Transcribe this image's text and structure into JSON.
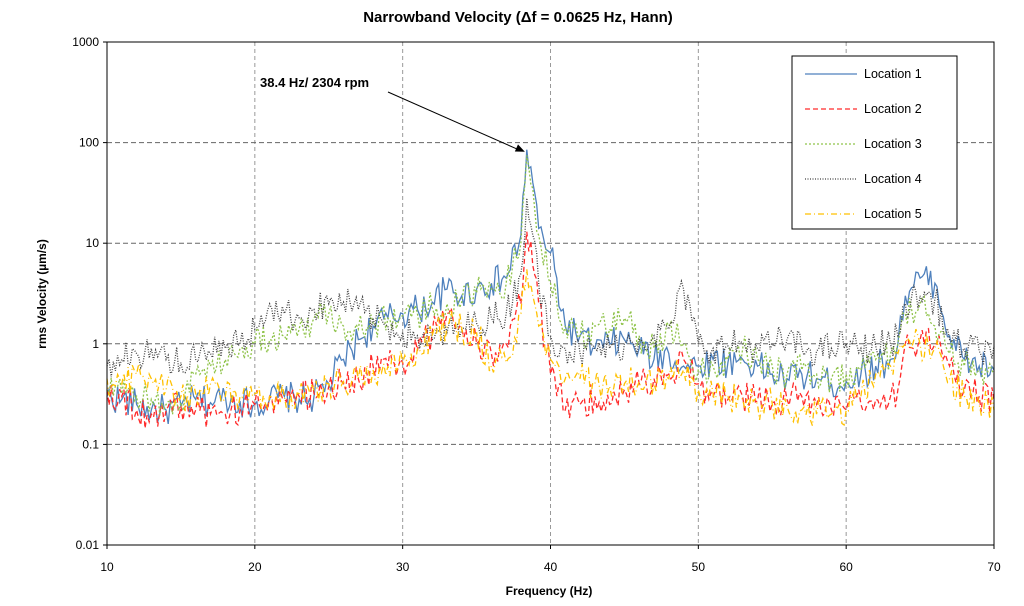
{
  "chart_data": {
    "type": "line",
    "title": "Narrowband Velocity (Δf  = 0.0625 Hz, Hann)",
    "xlabel": "Frequency (Hz)",
    "ylabel": "rms Velocity (µm/s)",
    "xlim": [
      10,
      70
    ],
    "ylim": [
      0.01,
      1000
    ],
    "yscale": "log",
    "x_ticks": [
      "10",
      "20",
      "30",
      "40",
      "50",
      "60",
      "70"
    ],
    "y_ticks": [
      "0.01",
      "0.1",
      "1",
      "10",
      "100",
      "1000"
    ],
    "grid": "dashed",
    "legend_position": "top-right",
    "annotation": {
      "text": "38.4 Hz/ 2304 rpm",
      "x": 38.4,
      "y": 85
    },
    "series": [
      {
        "name": "Location 1",
        "color": "#4f81bd",
        "dash": "solid",
        "x": [
          10,
          11,
          12,
          13,
          14,
          15,
          16,
          17,
          18,
          19,
          20,
          21,
          22,
          23,
          24,
          25,
          26,
          27,
          28,
          29,
          30,
          31,
          32,
          33,
          34,
          35,
          36,
          37,
          38,
          38.4,
          38.8,
          39.2,
          40,
          41,
          42,
          43,
          44,
          45,
          46,
          47,
          48,
          49,
          50,
          51,
          52,
          53,
          54,
          55,
          56,
          57,
          58,
          59,
          60,
          61,
          62,
          63,
          63.5,
          64,
          65,
          66,
          67,
          68,
          69,
          70
        ],
        "y": [
          0.3,
          0.28,
          0.25,
          0.22,
          0.22,
          0.24,
          0.28,
          0.26,
          0.3,
          0.27,
          0.25,
          0.28,
          0.3,
          0.28,
          0.3,
          0.4,
          0.7,
          1.1,
          1.5,
          1.8,
          2.0,
          2.2,
          2.6,
          3.5,
          3.0,
          3.5,
          4.0,
          4.5,
          12,
          85,
          40,
          14,
          8,
          1.5,
          1.2,
          0.9,
          1.0,
          1.1,
          0.9,
          0.7,
          0.8,
          0.6,
          0.6,
          0.7,
          0.65,
          0.7,
          0.6,
          0.5,
          0.45,
          0.5,
          0.45,
          0.4,
          0.42,
          0.5,
          0.6,
          0.7,
          1.0,
          3.0,
          4.5,
          4.0,
          1.2,
          0.7,
          0.6,
          0.55
        ]
      },
      {
        "name": "Location 2",
        "color": "#ff2a2a",
        "dash": "dashed",
        "x": [
          10,
          11,
          12,
          13,
          14,
          15,
          16,
          17,
          18,
          19,
          20,
          21,
          22,
          23,
          24,
          25,
          26,
          27,
          28,
          29,
          30,
          31,
          32,
          33,
          34,
          35,
          36,
          37,
          38,
          38.4,
          38.8,
          39.2,
          40,
          41,
          42,
          43,
          44,
          45,
          46,
          47,
          48,
          49,
          50,
          51,
          52,
          53,
          54,
          55,
          56,
          57,
          58,
          59,
          60,
          61,
          62,
          63,
          63.5,
          64,
          65,
          66,
          67,
          68,
          69,
          70
        ],
        "y": [
          0.35,
          0.3,
          0.22,
          0.2,
          0.22,
          0.24,
          0.22,
          0.2,
          0.2,
          0.22,
          0.25,
          0.3,
          0.28,
          0.3,
          0.32,
          0.38,
          0.4,
          0.45,
          0.6,
          0.6,
          0.65,
          0.85,
          1.3,
          2.0,
          1.4,
          1.0,
          0.8,
          1.0,
          2.5,
          13,
          6,
          2.5,
          0.5,
          0.22,
          0.25,
          0.3,
          0.25,
          0.35,
          0.4,
          0.45,
          0.5,
          0.7,
          0.4,
          0.3,
          0.28,
          0.3,
          0.27,
          0.26,
          0.28,
          0.3,
          0.25,
          0.22,
          0.22,
          0.25,
          0.28,
          0.3,
          0.35,
          1.0,
          1.1,
          1.0,
          0.6,
          0.35,
          0.3,
          0.28
        ]
      },
      {
        "name": "Location 3",
        "color": "#8fc34a",
        "dash": "dotted",
        "x": [
          10,
          11,
          12,
          13,
          14,
          15,
          16,
          17,
          18,
          19,
          20,
          21,
          22,
          23,
          24,
          25,
          26,
          27,
          28,
          29,
          30,
          31,
          32,
          33,
          34,
          35,
          36,
          37,
          38,
          38.4,
          38.8,
          39.2,
          40,
          41,
          42,
          43,
          44,
          45,
          46,
          47,
          48,
          49,
          50,
          51,
          52,
          53,
          54,
          55,
          56,
          57,
          58,
          59,
          60,
          61,
          62,
          63,
          63.5,
          64,
          65,
          66,
          67,
          68,
          69,
          70
        ],
        "y": [
          0.35,
          0.32,
          0.3,
          0.28,
          0.25,
          0.26,
          0.5,
          0.6,
          0.7,
          0.9,
          1.0,
          1.1,
          1.2,
          1.4,
          1.8,
          2.0,
          1.5,
          1.4,
          1.6,
          1.8,
          1.9,
          2.0,
          2.3,
          2.5,
          2.6,
          3.2,
          3.5,
          4.0,
          10,
          75,
          35,
          12,
          4.0,
          1.5,
          1.2,
          1.5,
          1.4,
          1.8,
          1.2,
          0.9,
          1.5,
          1.0,
          0.55,
          0.6,
          0.7,
          0.9,
          0.7,
          0.6,
          0.5,
          0.55,
          0.5,
          0.45,
          0.5,
          0.55,
          0.7,
          0.8,
          1.0,
          2.0,
          2.5,
          1.5,
          0.8,
          0.6,
          0.55,
          0.5
        ]
      },
      {
        "name": "Location 4",
        "color": "#404040",
        "dash": "densely-dotted",
        "x": [
          10,
          11,
          12,
          13,
          14,
          15,
          16,
          17,
          18,
          19,
          20,
          21,
          22,
          23,
          24,
          25,
          26,
          27,
          28,
          29,
          30,
          31,
          32,
          33,
          34,
          35,
          36,
          37,
          38,
          38.4,
          38.8,
          39.2,
          40,
          41,
          42,
          43,
          44,
          45,
          46,
          47,
          48,
          49,
          50,
          51,
          52,
          53,
          54,
          55,
          56,
          57,
          58,
          59,
          60,
          61,
          62,
          63,
          63.5,
          64,
          65,
          66,
          67,
          68,
          69,
          70
        ],
        "y": [
          0.6,
          0.7,
          0.8,
          0.9,
          0.7,
          0.65,
          0.7,
          0.8,
          0.9,
          1.0,
          1.4,
          2.5,
          2.0,
          1.8,
          2.2,
          2.5,
          2.6,
          2.2,
          1.8,
          1.5,
          1.3,
          1.2,
          1.1,
          1.3,
          1.4,
          1.6,
          1.8,
          2.0,
          5,
          28,
          12,
          4,
          1.2,
          0.9,
          0.8,
          0.9,
          0.9,
          1.0,
          1.1,
          1.2,
          1.4,
          3.5,
          1.0,
          0.9,
          0.95,
          1.0,
          0.9,
          1.0,
          1.1,
          0.9,
          0.85,
          0.9,
          1.0,
          0.9,
          0.95,
          1.0,
          1.2,
          2.5,
          3.0,
          2.8,
          1.1,
          0.9,
          0.85,
          0.95
        ]
      },
      {
        "name": "Location 5",
        "color": "#ffc000",
        "dash": "dash-dot",
        "x": [
          10,
          11,
          12,
          13,
          14,
          15,
          16,
          17,
          18,
          19,
          20,
          21,
          22,
          23,
          24,
          25,
          26,
          27,
          28,
          29,
          30,
          31,
          32,
          33,
          34,
          35,
          36,
          37,
          38,
          38.4,
          38.8,
          39.2,
          40,
          41,
          42,
          43,
          44,
          45,
          46,
          47,
          48,
          49,
          50,
          51,
          52,
          53,
          54,
          55,
          56,
          57,
          58,
          59,
          60,
          61,
          62,
          63,
          63.5,
          64,
          65,
          66,
          67,
          68,
          69,
          70
        ],
        "y": [
          0.45,
          0.4,
          0.5,
          0.45,
          0.35,
          0.3,
          0.32,
          0.4,
          0.3,
          0.3,
          0.32,
          0.3,
          0.3,
          0.32,
          0.35,
          0.4,
          0.42,
          0.45,
          0.55,
          0.6,
          0.65,
          0.9,
          1.2,
          1.5,
          1.4,
          1.3,
          0.6,
          0.65,
          2.0,
          5.5,
          3.0,
          1.5,
          0.7,
          0.45,
          0.45,
          0.4,
          0.38,
          0.4,
          0.42,
          0.4,
          0.45,
          0.55,
          0.35,
          0.32,
          0.3,
          0.28,
          0.25,
          0.25,
          0.24,
          0.22,
          0.2,
          0.2,
          0.22,
          0.3,
          0.5,
          0.6,
          0.8,
          1.0,
          1.0,
          0.9,
          0.45,
          0.3,
          0.25,
          0.22
        ]
      }
    ]
  }
}
